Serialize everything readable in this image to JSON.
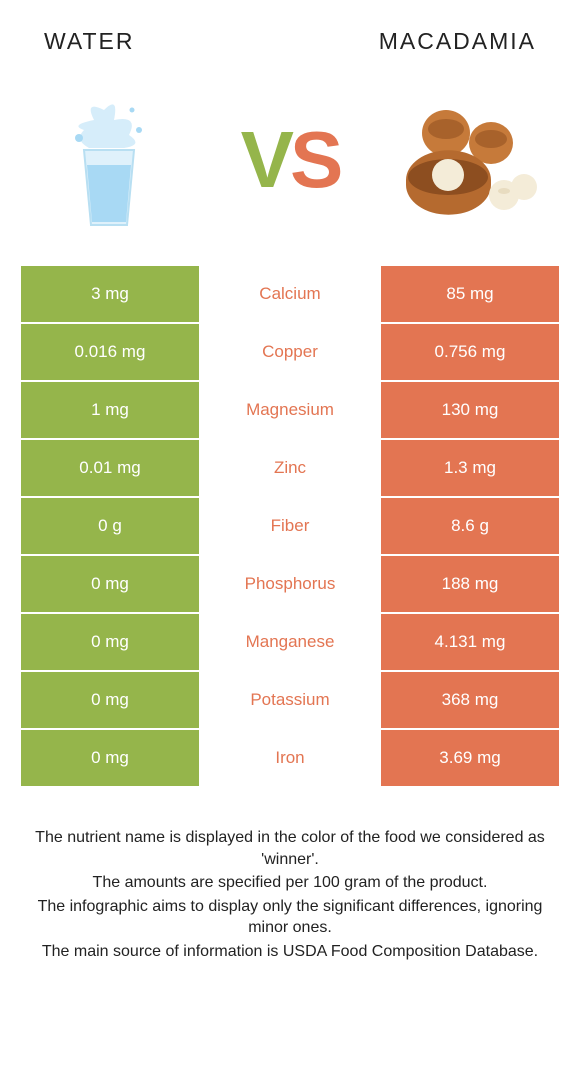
{
  "header": {
    "left": "WATER",
    "right": "MACADAMIA"
  },
  "vs": {
    "v": "V",
    "s": "S"
  },
  "colors": {
    "left_bg": "#95b54b",
    "right_bg": "#e37552",
    "mid_text_winner": "#e37552"
  },
  "rows": [
    {
      "left": "3 mg",
      "mid": "Calcium",
      "right": "85 mg",
      "winner": "right"
    },
    {
      "left": "0.016 mg",
      "mid": "Copper",
      "right": "0.756 mg",
      "winner": "right"
    },
    {
      "left": "1 mg",
      "mid": "Magnesium",
      "right": "130 mg",
      "winner": "right"
    },
    {
      "left": "0.01 mg",
      "mid": "Zinc",
      "right": "1.3 mg",
      "winner": "right"
    },
    {
      "left": "0 g",
      "mid": "Fiber",
      "right": "8.6 g",
      "winner": "right"
    },
    {
      "left": "0 mg",
      "mid": "Phosphorus",
      "right": "188 mg",
      "winner": "right"
    },
    {
      "left": "0 mg",
      "mid": "Manganese",
      "right": "4.131 mg",
      "winner": "right"
    },
    {
      "left": "0 mg",
      "mid": "Potassium",
      "right": "368 mg",
      "winner": "right"
    },
    {
      "left": "0 mg",
      "mid": "Iron",
      "right": "3.69 mg",
      "winner": "right"
    }
  ],
  "footer": {
    "line1": "The nutrient name is displayed in the color of the food we considered as 'winner'.",
    "line2": "The amounts are specified per 100 gram of the product.",
    "line3": "The infographic aims to display only the significant differences, ignoring minor ones.",
    "line4": "The main source of information is USDA Food Composition Database."
  }
}
